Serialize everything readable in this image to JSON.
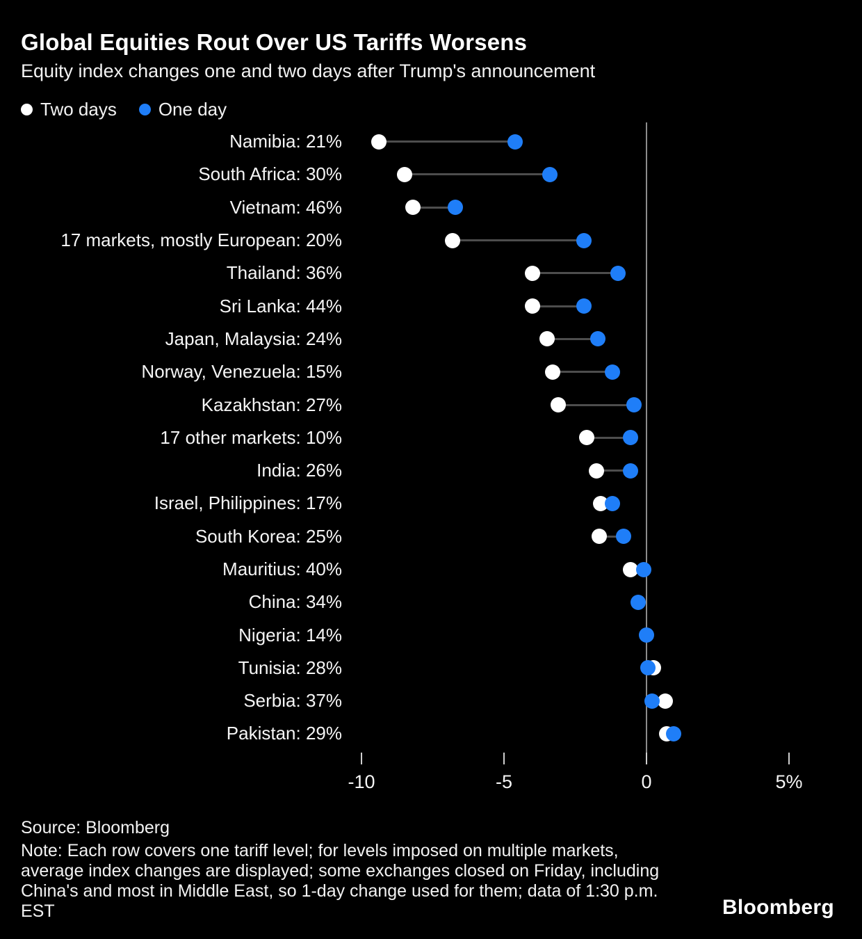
{
  "header": {
    "title": "Global Equities Rout Over US Tariffs Worsens",
    "subtitle": "Equity index changes one and two days after Trump's announcement"
  },
  "legend": {
    "two_days": {
      "label": "Two days",
      "color": "#ffffff"
    },
    "one_day": {
      "label": "One day",
      "color": "#1f7ef8"
    }
  },
  "chart_data": {
    "type": "dumbbell",
    "title": "Global Equities Rout Over US Tariffs Worsens",
    "xlabel": "",
    "ylabel": "",
    "xlim": [
      -11,
      6
    ],
    "grid": "zero-line-only",
    "legend_position": "top-left",
    "series_meta": [
      {
        "name": "Two days",
        "key": "two_days",
        "color": "#ffffff"
      },
      {
        "name": "One day",
        "key": "one_day",
        "color": "#1f7ef8"
      }
    ],
    "x_axis": {
      "ticks": [
        {
          "value": -10,
          "label": "-10"
        },
        {
          "value": -5,
          "label": "-5"
        },
        {
          "value": 0,
          "label": "0"
        },
        {
          "value": 5,
          "label": "5%"
        }
      ]
    },
    "rows": [
      {
        "market": "Namibia",
        "tariff_level": "21%",
        "two_days": -9.4,
        "one_day": -4.6
      },
      {
        "market": "South Africa",
        "tariff_level": "30%",
        "two_days": -8.5,
        "one_day": -3.4
      },
      {
        "market": "Vietnam",
        "tariff_level": "46%",
        "two_days": -8.2,
        "one_day": -6.7
      },
      {
        "market": "17 markets, mostly European",
        "tariff_level": "20%",
        "two_days": -6.8,
        "one_day": -2.2
      },
      {
        "market": "Thailand",
        "tariff_level": "36%",
        "two_days": -4.0,
        "one_day": -1.0
      },
      {
        "market": "Sri Lanka",
        "tariff_level": "44%",
        "two_days": -4.0,
        "one_day": -2.2
      },
      {
        "market": "Japan, Malaysia",
        "tariff_level": "24%",
        "two_days": -3.5,
        "one_day": -1.7
      },
      {
        "market": "Norway, Venezuela",
        "tariff_level": "15%",
        "two_days": -3.3,
        "one_day": -1.2
      },
      {
        "market": "Kazakhstan",
        "tariff_level": "27%",
        "two_days": -3.1,
        "one_day": -0.45
      },
      {
        "market": "17 other markets",
        "tariff_level": "10%",
        "two_days": -2.1,
        "one_day": -0.55
      },
      {
        "market": "India",
        "tariff_level": "26%",
        "two_days": -1.75,
        "one_day": -0.55
      },
      {
        "market": "Israel, Philippines",
        "tariff_level": "17%",
        "two_days": -1.6,
        "one_day": -1.2
      },
      {
        "market": "South Korea",
        "tariff_level": "25%",
        "two_days": -1.65,
        "one_day": -0.8
      },
      {
        "market": "Mauritius",
        "tariff_level": "40%",
        "two_days": -0.55,
        "one_day": -0.1
      },
      {
        "market": "China",
        "tariff_level": "34%",
        "two_days": null,
        "one_day": -0.3
      },
      {
        "market": "Nigeria",
        "tariff_level": "14%",
        "two_days": null,
        "one_day": 0.0
      },
      {
        "market": "Tunisia",
        "tariff_level": "28%",
        "two_days": 0.25,
        "one_day": 0.05
      },
      {
        "market": "Serbia",
        "tariff_level": "37%",
        "two_days": 0.65,
        "one_day": 0.2
      },
      {
        "market": "Pakistan",
        "tariff_level": "29%",
        "two_days": 0.7,
        "one_day": 0.95
      }
    ]
  },
  "colors": {
    "background": "#000000",
    "one_day": "#1f7ef8",
    "two_days": "#ffffff",
    "connector": "#4d4d4d",
    "zero_line": "#8c8c8c"
  },
  "footer": {
    "source": "Source: Bloomberg",
    "note": "Note: Each row covers one tariff level; for levels imposed on multiple markets, average index changes are displayed; some exchanges closed on Friday, including China's and most in Middle East, so 1-day change used for them; data of 1:30 p.m. EST",
    "logo": "Bloomberg"
  }
}
